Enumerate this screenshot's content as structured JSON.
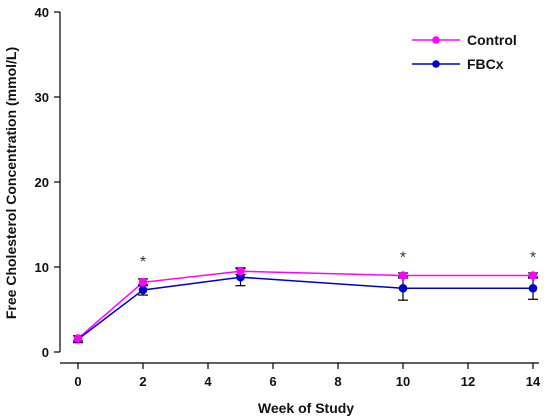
{
  "chart_data": {
    "type": "line",
    "xlabel": "Week of Study",
    "ylabel": "Free Cholesterol Concentration (mmol/L)",
    "xlim": [
      0,
      14
    ],
    "ylim": [
      0,
      40
    ],
    "xticks": [
      0,
      2,
      4,
      6,
      8,
      10,
      12,
      14
    ],
    "yticks": [
      0,
      10,
      20,
      30,
      40
    ],
    "grid": false,
    "legend_position": "top-right",
    "series": [
      {
        "name": "Control",
        "color": "#ff00ff",
        "x": [
          0,
          2,
          5,
          10,
          14
        ],
        "y": [
          1.6,
          8.2,
          9.5,
          9.0,
          9.0
        ],
        "error": [
          0.3,
          0.4,
          0.4,
          0.3,
          0.3
        ]
      },
      {
        "name": "FBCx",
        "color": "#0000cc",
        "x": [
          0,
          2,
          5,
          10,
          14
        ],
        "y": [
          1.5,
          7.3,
          8.8,
          7.5,
          7.5
        ],
        "error": [
          0.4,
          0.6,
          1.0,
          1.4,
          1.3
        ]
      }
    ],
    "annotations": [
      {
        "text": "*",
        "x": 2,
        "y": 10.5
      },
      {
        "text": "*",
        "x": 10,
        "y": 11.0
      },
      {
        "text": "*",
        "x": 14,
        "y": 11.0
      }
    ]
  }
}
